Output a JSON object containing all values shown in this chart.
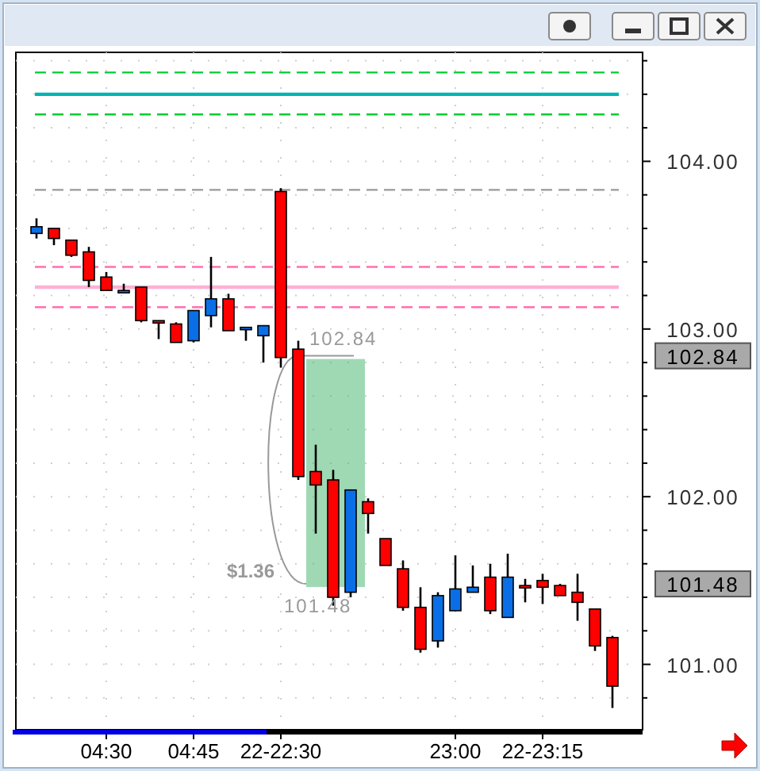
{
  "chart_data": {
    "type": "candlestick",
    "categories": [
      null,
      null,
      null,
      null,
      "04:30",
      null,
      null,
      null,
      null,
      "04:45",
      null,
      null,
      null,
      null,
      "22-22:30",
      null,
      null,
      null,
      null,
      null,
      null,
      null,
      null,
      null,
      "23:00",
      null,
      null,
      null,
      null,
      "22-23:15",
      null,
      null,
      null,
      null
    ],
    "ohlc": [
      [
        103.57,
        103.66,
        103.54,
        103.61
      ],
      [
        103.6,
        103.6,
        103.5,
        103.54
      ],
      [
        103.53,
        103.53,
        103.43,
        103.44
      ],
      [
        103.46,
        103.49,
        103.25,
        103.29
      ],
      [
        103.31,
        103.34,
        103.23,
        103.23
      ],
      [
        103.22,
        103.27,
        103.22,
        103.23
      ],
      [
        103.25,
        103.25,
        103.04,
        103.05
      ],
      [
        103.05,
        103.05,
        102.94,
        103.04
      ],
      [
        103.03,
        103.04,
        102.92,
        102.92
      ],
      [
        102.93,
        103.11,
        102.92,
        103.11
      ],
      [
        103.08,
        103.43,
        103.01,
        103.18
      ],
      [
        103.18,
        103.21,
        102.99,
        102.99
      ],
      [
        103.0,
        103.01,
        102.93,
        103.01
      ],
      [
        102.96,
        103.02,
        102.8,
        103.02
      ],
      [
        103.82,
        103.84,
        102.77,
        102.83
      ],
      [
        102.88,
        102.93,
        102.1,
        102.12
      ],
      [
        102.15,
        102.31,
        101.78,
        102.07
      ],
      [
        102.1,
        102.16,
        101.35,
        101.4
      ],
      [
        101.43,
        102.04,
        101.4,
        102.04
      ],
      [
        101.97,
        101.99,
        101.78,
        101.9
      ],
      [
        101.75,
        101.75,
        101.59,
        101.59
      ],
      [
        101.57,
        101.62,
        101.32,
        101.34
      ],
      [
        101.34,
        101.46,
        101.07,
        101.09
      ],
      [
        101.14,
        101.43,
        101.1,
        101.41
      ],
      [
        101.32,
        101.65,
        101.32,
        101.45
      ],
      [
        101.43,
        101.59,
        101.43,
        101.46
      ],
      [
        101.52,
        101.6,
        101.3,
        101.32
      ],
      [
        101.28,
        101.66,
        101.28,
        101.52
      ],
      [
        101.47,
        101.51,
        101.37,
        101.46
      ],
      [
        101.5,
        101.54,
        101.36,
        101.46
      ],
      [
        101.47,
        101.48,
        101.41,
        101.41
      ],
      [
        101.43,
        101.54,
        101.26,
        101.37
      ],
      [
        101.33,
        101.33,
        101.08,
        101.11
      ],
      [
        101.16,
        101.17,
        100.74,
        100.87
      ]
    ],
    "colors": [
      "#0a6fe6",
      "#ff0000",
      "#ff0000",
      "#ff0000",
      "#ff0000",
      "#0a6fe6",
      "#ff0000",
      "#ff0000",
      "#ff0000",
      "#0a6fe6",
      "#0a6fe6",
      "#ff0000",
      "#0a6fe6",
      "#0a6fe6",
      "#ff0000",
      "#ff0000",
      "#ff0000",
      "#ff0000",
      "#0a6fe6",
      "#ff0000",
      "#ff0000",
      "#ff0000",
      "#ff0000",
      "#0a6fe6",
      "#0a6fe6",
      "#0a6fe6",
      "#ff0000",
      "#0a6fe6",
      "#ff0000",
      "#ff0000",
      "#ff0000",
      "#ff0000",
      "#ff0000",
      "#ff0000"
    ],
    "ylim": [
      100.61,
      104.65
    ],
    "yticks": [
      {
        "value": 104,
        "label": "104.00"
      },
      {
        "value": 103,
        "label": "103.00"
      },
      {
        "value": 102,
        "label": "102.00"
      },
      {
        "value": 101,
        "label": "101.00"
      },
      102.84,
      101.48,
      {
        "value": 104.6,
        "label": null
      },
      {
        "value": 104.4,
        "label": null
      },
      {
        "value": 104.2,
        "label": null
      },
      {
        "value": 103.8,
        "label": null
      },
      {
        "value": 103.6,
        "label": null
      },
      {
        "value": 103.4,
        "label": null
      },
      {
        "value": 103.2,
        "label": null
      },
      {
        "value": 102.8,
        "label": null
      },
      {
        "value": 102.6,
        "label": null
      },
      {
        "value": 102.4,
        "label": null
      },
      {
        "value": 102.2,
        "label": null
      },
      {
        "value": 101.8,
        "label": null
      },
      {
        "value": 101.6,
        "label": null
      },
      {
        "value": 101.4,
        "label": null
      },
      {
        "value": 101.2,
        "label": null
      },
      {
        "value": 100.8,
        "label": null
      }
    ],
    "grid": true,
    "ref_lines": [
      {
        "axis": "y",
        "value": 104.53,
        "color": "#00cc33",
        "line_style": "dashed"
      },
      {
        "axis": "y",
        "value": 104.4,
        "color": "#00b4b4",
        "line_style": "solid"
      },
      {
        "axis": "y",
        "value": 104.28,
        "color": "#00cc33",
        "line_style": "dashed"
      },
      {
        "axis": "y",
        "value": 103.83,
        "color": "#999999",
        "line_style": "dashed"
      },
      {
        "axis": "y",
        "value": 103.37,
        "color": "#ff70b0",
        "line_style": "dashed"
      },
      {
        "axis": "y",
        "value": 103.25,
        "color": "#ffb0d4",
        "line_style": "solid"
      },
      {
        "axis": "y",
        "value": 103.13,
        "color": "#ff70b0",
        "line_style": "dashed"
      }
    ],
    "annotations": [
      "102.84",
      "$1.36",
      "101.48"
    ]
  }
}
